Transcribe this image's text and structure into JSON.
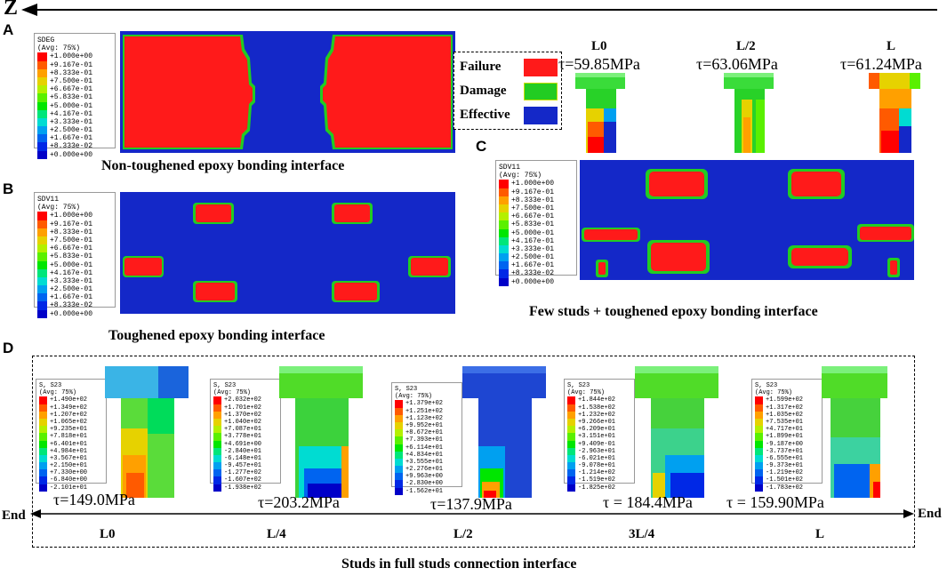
{
  "header": {
    "axis_label": "Z"
  },
  "panels": {
    "a": {
      "letter": "A",
      "caption": "Non-toughened epoxy bonding interface",
      "legend": {
        "title1": "SDEG",
        "title2": "(Avg: 75%)",
        "values": [
          "+1.000e+00",
          "+9.167e-01",
          "+8.333e-01",
          "+7.500e-01",
          "+6.667e-01",
          "+5.833e-01",
          "+5.000e-01",
          "+4.167e-01",
          "+3.333e-01",
          "+2.500e-01",
          "+1.667e-01",
          "+8.333e-02",
          "+0.000e+00"
        ]
      }
    },
    "b": {
      "letter": "B",
      "caption": "Toughened epoxy bonding interface",
      "legend": {
        "title1": "SDV11",
        "title2": "(Avg: 75%)",
        "values": [
          "+1.000e+00",
          "+9.167e-01",
          "+8.333e-01",
          "+7.500e-01",
          "+6.667e-01",
          "+5.833e-01",
          "+5.000e-01",
          "+4.167e-01",
          "+3.333e-01",
          "+2.500e-01",
          "+1.667e-01",
          "+8.333e-02",
          "+0.000e+00"
        ]
      }
    },
    "c": {
      "letter": "C",
      "caption": "Few studs + toughened epoxy bonding interface",
      "legend": {
        "title1": "SDV11",
        "title2": "(Avg: 75%)",
        "values": [
          "+1.000e+00",
          "+9.167e-01",
          "+8.333e-01",
          "+7.500e-01",
          "+6.667e-01",
          "+5.833e-01",
          "+5.000e-01",
          "+4.167e-01",
          "+3.333e-01",
          "+2.500e-01",
          "+1.667e-01",
          "+8.333e-02",
          "+0.000e+00"
        ]
      },
      "studs": [
        {
          "pos": "L0",
          "tau": "τ=59.85MPa"
        },
        {
          "pos": "L/2",
          "tau": "τ=63.06MPa"
        },
        {
          "pos": "L",
          "tau": "τ=61.24MPa"
        }
      ]
    },
    "d": {
      "letter": "D",
      "caption": "Studs in full studs connection interface",
      "end_left": "End",
      "end_right": "End",
      "studs": [
        {
          "pos": "L0",
          "tau": "τ=149.0MPa",
          "legend_title1": "S, S23",
          "legend_title2": "(Avg: 75%)",
          "values": [
            "+1.490e+02",
            "+1.349e+02",
            "+1.207e+02",
            "+1.065e+02",
            "+9.235e+01",
            "+7.818e+01",
            "+6.401e+01",
            "+4.984e+01",
            "+3.567e+01",
            "+2.150e+01",
            "+7.330e+00",
            "-6.840e+00",
            "-2.101e+01"
          ]
        },
        {
          "pos": "L/4",
          "tau": "τ=203.2MPa",
          "legend_title1": "S, S23",
          "legend_title2": "(Avg: 75%)",
          "values": [
            "+2.032e+02",
            "+1.701e+02",
            "+1.370e+02",
            "+1.040e+02",
            "+7.087e+01",
            "+3.778e+01",
            "+4.691e+00",
            "-2.840e+01",
            "-6.148e+01",
            "-9.457e+01",
            "-1.277e+02",
            "-1.607e+02",
            "-1.938e+02"
          ]
        },
        {
          "pos": "L/2",
          "tau": "τ=137.9MPa",
          "legend_title1": "S, S23",
          "legend_title2": "(Avg: 75%)",
          "values": [
            "+1.379e+02",
            "+1.251e+02",
            "+1.123e+02",
            "+9.952e+01",
            "+8.672e+01",
            "+7.393e+01",
            "+6.114e+01",
            "+4.834e+01",
            "+3.555e+01",
            "+2.276e+01",
            "+9.963e+00",
            "-2.830e+00",
            "-1.562e+01"
          ]
        },
        {
          "pos": "3L/4",
          "tau": "τ = 184.4MPa",
          "legend_title1": "S, S23",
          "legend_title2": "(Avg: 75%)",
          "values": [
            "+1.844e+02",
            "+1.538e+02",
            "+1.232e+02",
            "+9.266e+01",
            "+6.209e+01",
            "+3.151e+01",
            "+9.409e-01",
            "-2.963e+01",
            "-6.021e+01",
            "-9.078e+01",
            "-1.214e+02",
            "-1.519e+02",
            "-1.825e+02"
          ]
        },
        {
          "pos": "L",
          "tau": "τ = 159.90MPa",
          "legend_title1": "S, S23",
          "legend_title2": "(Avg: 75%)",
          "values": [
            "+1.599e+02",
            "+1.317e+02",
            "+1.035e+02",
            "+7.535e+01",
            "+4.717e+01",
            "+1.899e+01",
            "-9.187e+00",
            "-3.737e+01",
            "-6.555e+01",
            "-9.373e+01",
            "-1.219e+02",
            "-1.501e+02",
            "-1.783e+02"
          ]
        }
      ]
    }
  },
  "key": {
    "failure": {
      "label": "Failure",
      "color": "#ff1a1a"
    },
    "damage": {
      "label": "Damage",
      "color": "#22cc22"
    },
    "effective": {
      "label": "Effective",
      "color": "#1428c8"
    }
  },
  "colormap": [
    "#ff0000",
    "#ff5a00",
    "#ffa000",
    "#e6d200",
    "#b4f000",
    "#5af000",
    "#00e600",
    "#00e67a",
    "#00dcd2",
    "#00a0f0",
    "#0064f0",
    "#0028e6",
    "#0000c8"
  ]
}
